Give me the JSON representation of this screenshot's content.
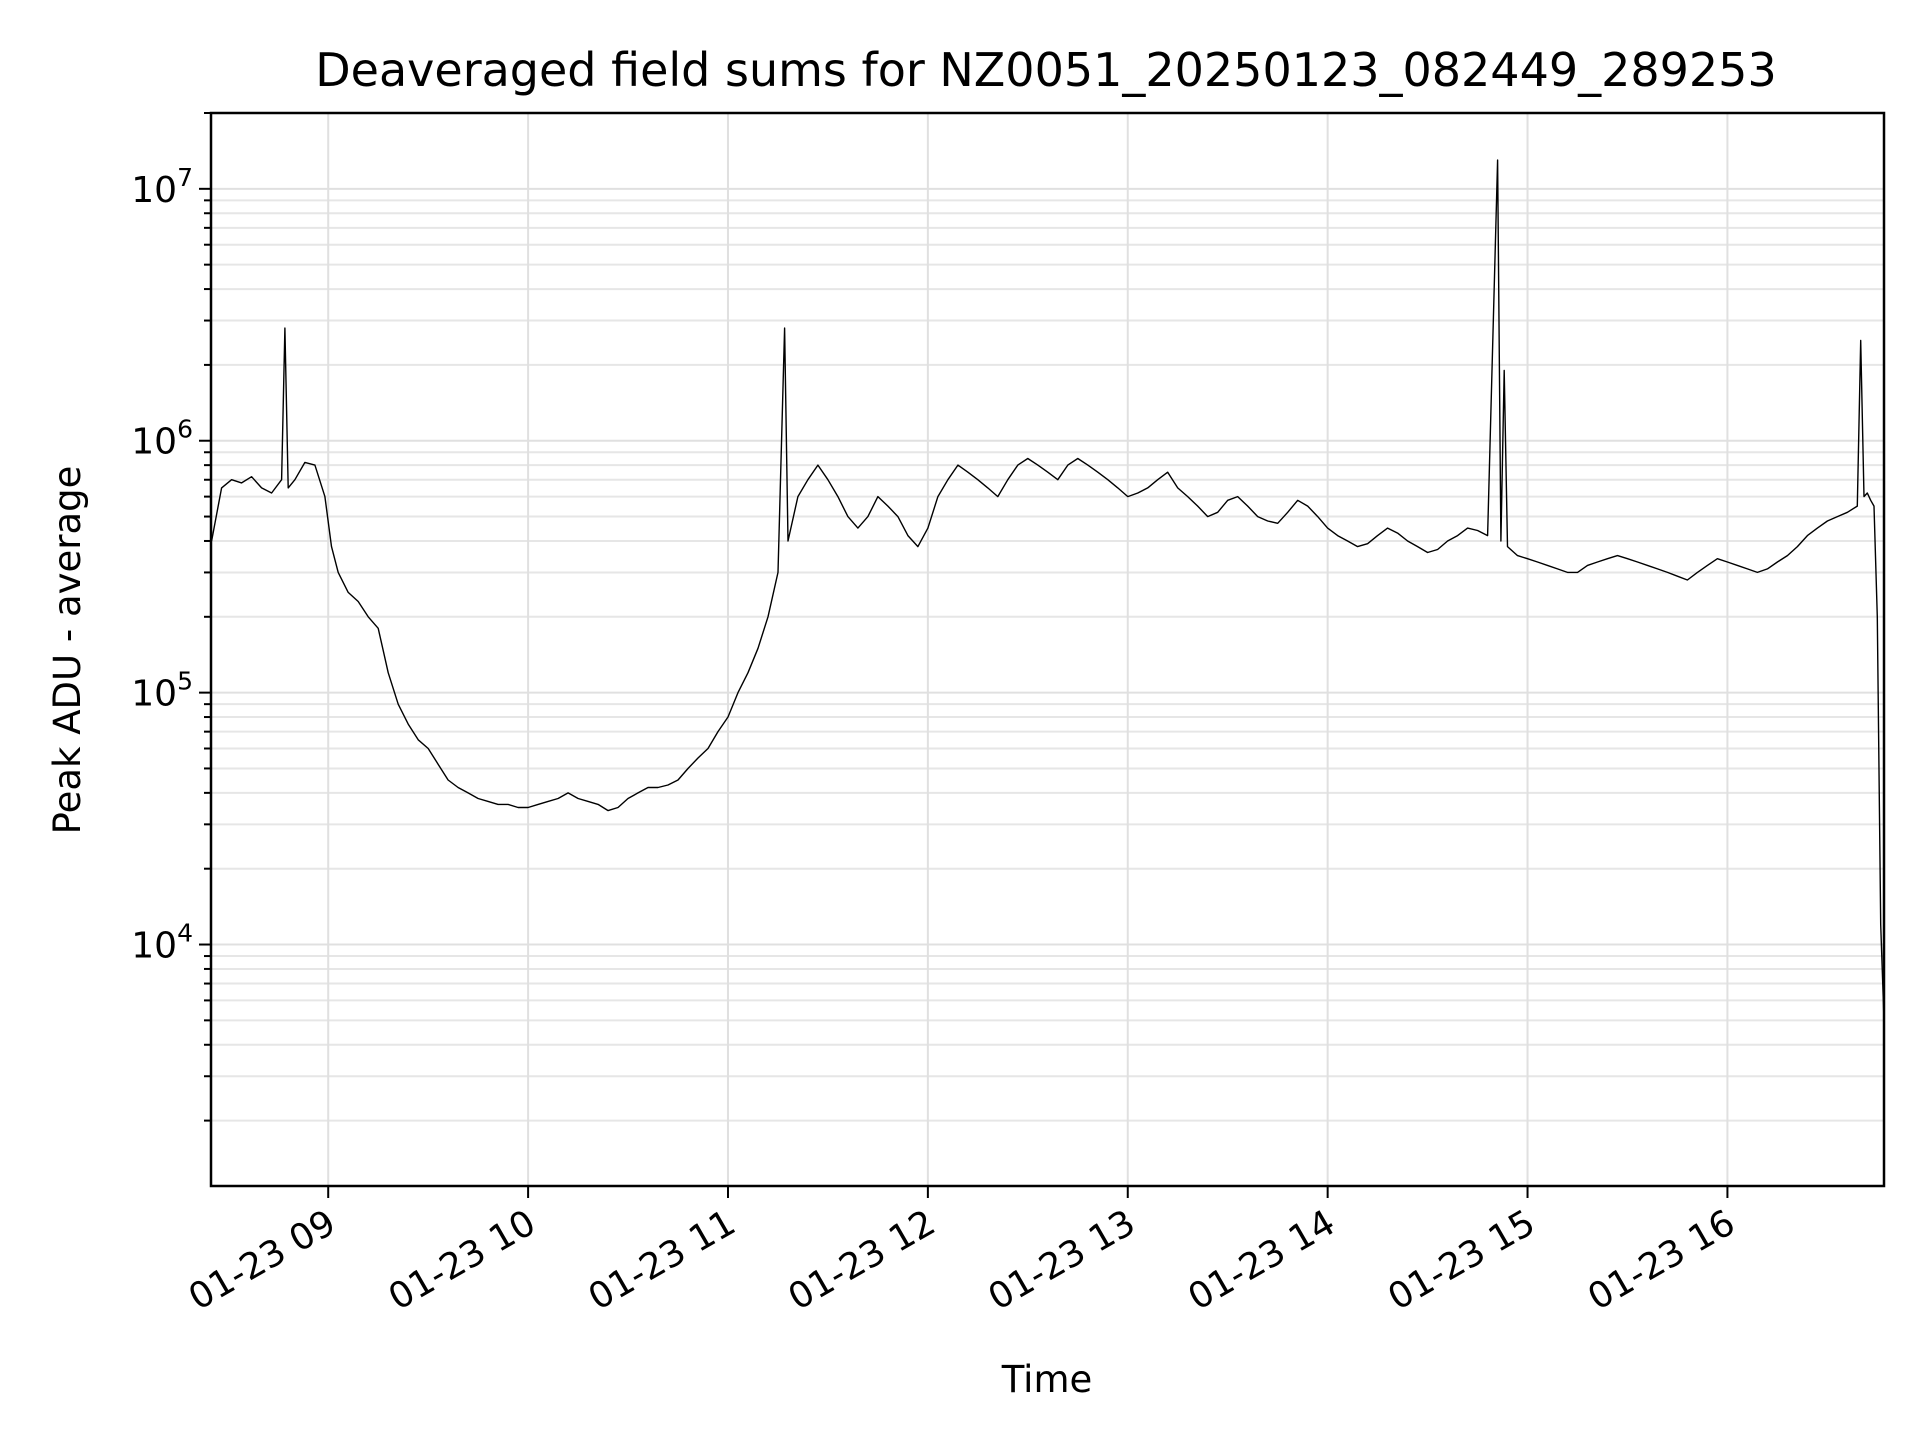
{
  "chart_data": {
    "type": "line",
    "title": "Deaveraged field sums for NZ0051_20250123_082449_289253",
    "xlabel": "Time",
    "ylabel": "Peak ADU - average",
    "yscale": "log",
    "ylim": [
      1100,
      20000000
    ],
    "xlim": [
      "2025-01-23T08:24:49",
      "2025-01-23T16:47:00"
    ],
    "grid": true,
    "x_ticks": [
      {
        "value": "2025-01-23T09:00:00",
        "label": "01-23 09"
      },
      {
        "value": "2025-01-23T10:00:00",
        "label": "01-23 10"
      },
      {
        "value": "2025-01-23T11:00:00",
        "label": "01-23 11"
      },
      {
        "value": "2025-01-23T12:00:00",
        "label": "01-23 12"
      },
      {
        "value": "2025-01-23T13:00:00",
        "label": "01-23 13"
      },
      {
        "value": "2025-01-23T14:00:00",
        "label": "01-23 14"
      },
      {
        "value": "2025-01-23T15:00:00",
        "label": "01-23 15"
      },
      {
        "value": "2025-01-23T16:00:00",
        "label": "01-23 16"
      }
    ],
    "y_ticks": [
      {
        "value": 10000,
        "base": "10",
        "exp": "4"
      },
      {
        "value": 100000,
        "base": "10",
        "exp": "5"
      },
      {
        "value": 1000000,
        "base": "10",
        "exp": "6"
      },
      {
        "value": 10000000,
        "base": "10",
        "exp": "7"
      }
    ],
    "series_color": "#000000",
    "series": [
      {
        "x": [
          "2025-01-23T08:25:00",
          "2025-01-23T08:28:00",
          "2025-01-23T08:31:00",
          "2025-01-23T08:34:00",
          "2025-01-23T08:37:00",
          "2025-01-23T08:40:00",
          "2025-01-23T08:43:00",
          "2025-01-23T08:46:00",
          "2025-01-23T08:47:00",
          "2025-01-23T08:48:00",
          "2025-01-23T08:50:00",
          "2025-01-23T08:53:00",
          "2025-01-23T08:56:00",
          "2025-01-23T08:59:00",
          "2025-01-23T09:01:00",
          "2025-01-23T09:03:00",
          "2025-01-23T09:06:00",
          "2025-01-23T09:09:00",
          "2025-01-23T09:12:00",
          "2025-01-23T09:15:00",
          "2025-01-23T09:18:00",
          "2025-01-23T09:21:00",
          "2025-01-23T09:24:00",
          "2025-01-23T09:27:00",
          "2025-01-23T09:30:00",
          "2025-01-23T09:33:00",
          "2025-01-23T09:36:00",
          "2025-01-23T09:39:00",
          "2025-01-23T09:42:00",
          "2025-01-23T09:45:00",
          "2025-01-23T09:48:00",
          "2025-01-23T09:51:00",
          "2025-01-23T09:54:00",
          "2025-01-23T09:57:00",
          "2025-01-23T10:00:00",
          "2025-01-23T10:03:00",
          "2025-01-23T10:06:00",
          "2025-01-23T10:09:00",
          "2025-01-23T10:12:00",
          "2025-01-23T10:15:00",
          "2025-01-23T10:18:00",
          "2025-01-23T10:21:00",
          "2025-01-23T10:24:00",
          "2025-01-23T10:27:00",
          "2025-01-23T10:30:00",
          "2025-01-23T10:33:00",
          "2025-01-23T10:36:00",
          "2025-01-23T10:39:00",
          "2025-01-23T10:42:00",
          "2025-01-23T10:45:00",
          "2025-01-23T10:48:00",
          "2025-01-23T10:51:00",
          "2025-01-23T10:54:00",
          "2025-01-23T10:57:00",
          "2025-01-23T11:00:00",
          "2025-01-23T11:03:00",
          "2025-01-23T11:06:00",
          "2025-01-23T11:09:00",
          "2025-01-23T11:12:00",
          "2025-01-23T11:15:00",
          "2025-01-23T11:17:00",
          "2025-01-23T11:18:00",
          "2025-01-23T11:21:00",
          "2025-01-23T11:24:00",
          "2025-01-23T11:27:00",
          "2025-01-23T11:30:00",
          "2025-01-23T11:33:00",
          "2025-01-23T11:36:00",
          "2025-01-23T11:39:00",
          "2025-01-23T11:42:00",
          "2025-01-23T11:45:00",
          "2025-01-23T11:48:00",
          "2025-01-23T11:51:00",
          "2025-01-23T11:54:00",
          "2025-01-23T11:57:00",
          "2025-01-23T12:00:00",
          "2025-01-23T12:03:00",
          "2025-01-23T12:06:00",
          "2025-01-23T12:09:00",
          "2025-01-23T12:12:00",
          "2025-01-23T12:15:00",
          "2025-01-23T12:18:00",
          "2025-01-23T12:21:00",
          "2025-01-23T12:24:00",
          "2025-01-23T12:27:00",
          "2025-01-23T12:30:00",
          "2025-01-23T12:33:00",
          "2025-01-23T12:36:00",
          "2025-01-23T12:39:00",
          "2025-01-23T12:42:00",
          "2025-01-23T12:45:00",
          "2025-01-23T12:48:00",
          "2025-01-23T12:51:00",
          "2025-01-23T12:54:00",
          "2025-01-23T12:57:00",
          "2025-01-23T13:00:00",
          "2025-01-23T13:03:00",
          "2025-01-23T13:06:00",
          "2025-01-23T13:09:00",
          "2025-01-23T13:12:00",
          "2025-01-23T13:15:00",
          "2025-01-23T13:18:00",
          "2025-01-23T13:21:00",
          "2025-01-23T13:24:00",
          "2025-01-23T13:27:00",
          "2025-01-23T13:30:00",
          "2025-01-23T13:33:00",
          "2025-01-23T13:36:00",
          "2025-01-23T13:39:00",
          "2025-01-23T13:42:00",
          "2025-01-23T13:45:00",
          "2025-01-23T13:48:00",
          "2025-01-23T13:51:00",
          "2025-01-23T13:54:00",
          "2025-01-23T13:57:00",
          "2025-01-23T14:00:00",
          "2025-01-23T14:03:00",
          "2025-01-23T14:06:00",
          "2025-01-23T14:09:00",
          "2025-01-23T14:12:00",
          "2025-01-23T14:15:00",
          "2025-01-23T14:18:00",
          "2025-01-23T14:21:00",
          "2025-01-23T14:24:00",
          "2025-01-23T14:27:00",
          "2025-01-23T14:30:00",
          "2025-01-23T14:33:00",
          "2025-01-23T14:36:00",
          "2025-01-23T14:39:00",
          "2025-01-23T14:42:00",
          "2025-01-23T14:45:00",
          "2025-01-23T14:48:00",
          "2025-01-23T14:51:00",
          "2025-01-23T14:52:00",
          "2025-01-23T14:53:00",
          "2025-01-23T14:54:00",
          "2025-01-23T14:57:00",
          "2025-01-23T15:00:00",
          "2025-01-23T15:03:00",
          "2025-01-23T15:06:00",
          "2025-01-23T15:09:00",
          "2025-01-23T15:12:00",
          "2025-01-23T15:15:00",
          "2025-01-23T15:18:00",
          "2025-01-23T15:21:00",
          "2025-01-23T15:24:00",
          "2025-01-23T15:27:00",
          "2025-01-23T15:30:00",
          "2025-01-23T15:33:00",
          "2025-01-23T15:36:00",
          "2025-01-23T15:39:00",
          "2025-01-23T15:42:00",
          "2025-01-23T15:45:00",
          "2025-01-23T15:48:00",
          "2025-01-23T15:51:00",
          "2025-01-23T15:54:00",
          "2025-01-23T15:57:00",
          "2025-01-23T16:00:00",
          "2025-01-23T16:03:00",
          "2025-01-23T16:06:00",
          "2025-01-23T16:09:00",
          "2025-01-23T16:12:00",
          "2025-01-23T16:15:00",
          "2025-01-23T16:18:00",
          "2025-01-23T16:21:00",
          "2025-01-23T16:24:00",
          "2025-01-23T16:27:00",
          "2025-01-23T16:30:00",
          "2025-01-23T16:33:00",
          "2025-01-23T16:36:00",
          "2025-01-23T16:39:00",
          "2025-01-23T16:40:00",
          "2025-01-23T16:41:00",
          "2025-01-23T16:42:00",
          "2025-01-23T16:43:00",
          "2025-01-23T16:44:00",
          "2025-01-23T16:45:00",
          "2025-01-23T16:46:00",
          "2025-01-23T16:47:00"
        ],
        "y": [
          400000,
          650000,
          700000,
          680000,
          720000,
          650000,
          620000,
          700000,
          2800000,
          650000,
          700000,
          820000,
          800000,
          600000,
          380000,
          300000,
          250000,
          230000,
          200000,
          180000,
          120000,
          90000,
          75000,
          65000,
          60000,
          52000,
          45000,
          42000,
          40000,
          38000,
          37000,
          36000,
          36000,
          35000,
          35000,
          36000,
          37000,
          38000,
          40000,
          38000,
          37000,
          36000,
          34000,
          35000,
          38000,
          40000,
          42000,
          42000,
          43000,
          45000,
          50000,
          55000,
          60000,
          70000,
          80000,
          100000,
          120000,
          150000,
          200000,
          300000,
          2800000,
          400000,
          600000,
          700000,
          800000,
          700000,
          600000,
          500000,
          450000,
          500000,
          600000,
          550000,
          500000,
          420000,
          380000,
          450000,
          600000,
          700000,
          800000,
          750000,
          700000,
          650000,
          600000,
          700000,
          800000,
          850000,
          800000,
          750000,
          700000,
          800000,
          850000,
          800000,
          750000,
          700000,
          650000,
          600000,
          620000,
          650000,
          700000,
          750000,
          650000,
          600000,
          550000,
          500000,
          520000,
          580000,
          600000,
          550000,
          500000,
          480000,
          470000,
          520000,
          580000,
          550000,
          500000,
          450000,
          420000,
          400000,
          380000,
          390000,
          420000,
          450000,
          430000,
          400000,
          380000,
          360000,
          370000,
          400000,
          420000,
          450000,
          440000,
          420000,
          13000000,
          400000,
          1900000,
          380000,
          350000,
          340000,
          330000,
          320000,
          310000,
          300000,
          300000,
          320000,
          330000,
          340000,
          350000,
          340000,
          330000,
          320000,
          310000,
          300000,
          290000,
          280000,
          300000,
          320000,
          340000,
          330000,
          320000,
          310000,
          300000,
          310000,
          330000,
          350000,
          380000,
          420000,
          450000,
          480000,
          500000,
          520000,
          550000,
          2500000,
          600000,
          620000,
          580000,
          550000,
          200000,
          12000,
          5000
        ]
      }
    ]
  }
}
